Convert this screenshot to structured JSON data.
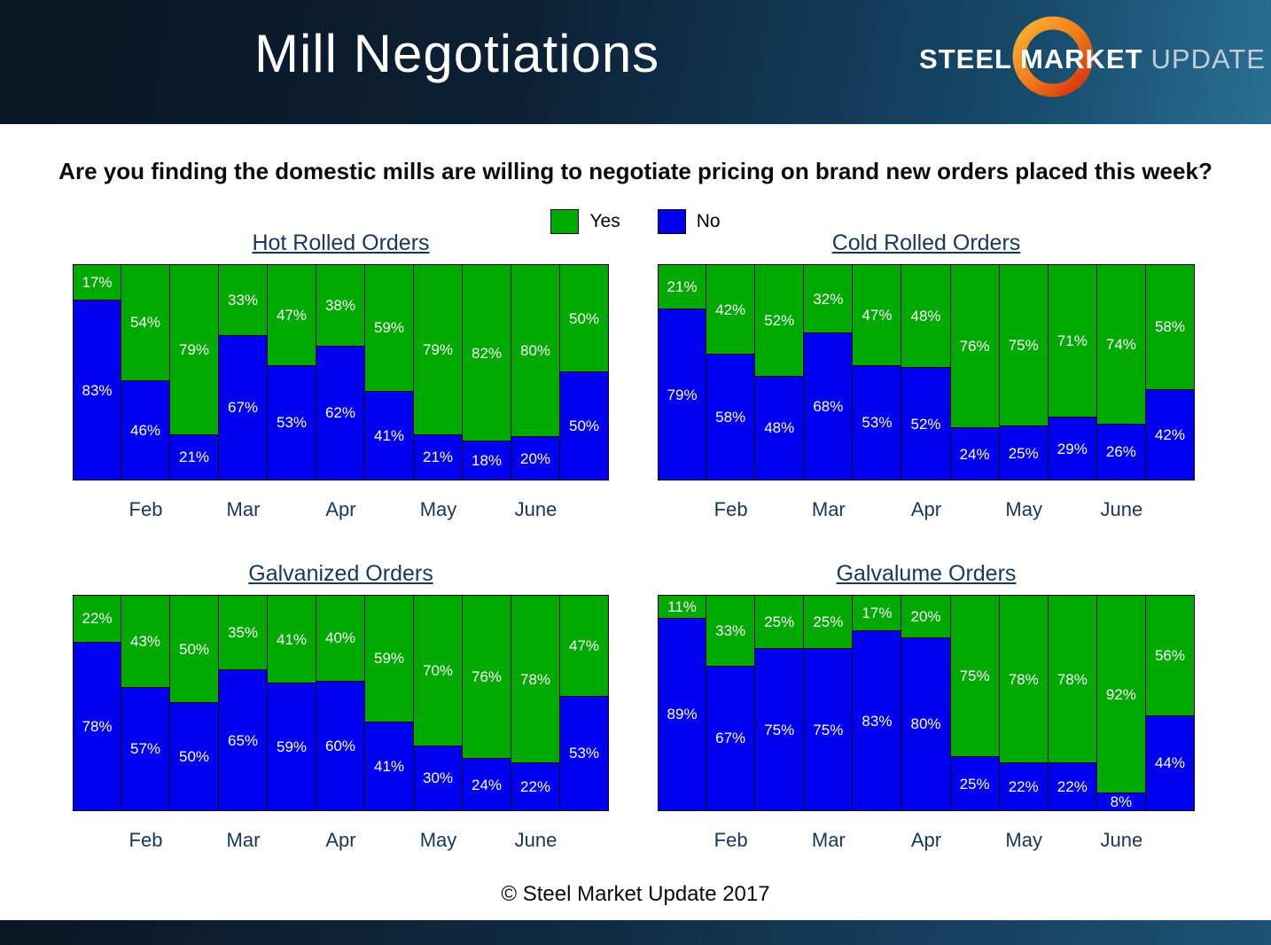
{
  "header": {
    "title": "Mill Negotiations",
    "logo": {
      "steel": "STEEL",
      "market": "MARKET",
      "update": "UPDATE"
    }
  },
  "question": "Are you finding the domestic mills are willing to negotiate pricing on brand new orders placed this week?",
  "legend": {
    "yes_label": "Yes",
    "no_label": "No",
    "yes_color": "#00AA00",
    "no_color": "#0000F0"
  },
  "footer": "© Steel Market Update 2017",
  "chart_data": [
    {
      "type": "bar",
      "stacked": true,
      "title": "Hot Rolled Orders",
      "unit": "%",
      "ylim": [
        0,
        100
      ],
      "legend_position": "top",
      "categories": [
        "Feb",
        "Mar",
        "Apr",
        "May",
        "June"
      ],
      "series": [
        {
          "name": "Yes",
          "color": "#00AA00",
          "values": [
            17,
            54,
            79,
            33,
            47,
            38,
            59,
            79,
            82,
            80,
            50
          ]
        },
        {
          "name": "No",
          "color": "#0000F0",
          "values": [
            83,
            46,
            21,
            67,
            53,
            62,
            41,
            21,
            18,
            20,
            50
          ]
        }
      ]
    },
    {
      "type": "bar",
      "stacked": true,
      "title": "Cold Rolled Orders",
      "unit": "%",
      "ylim": [
        0,
        100
      ],
      "legend_position": "top",
      "categories": [
        "Feb",
        "Mar",
        "Apr",
        "May",
        "June"
      ],
      "series": [
        {
          "name": "Yes",
          "color": "#00AA00",
          "values": [
            21,
            42,
            52,
            32,
            47,
            48,
            76,
            75,
            71,
            74,
            58
          ]
        },
        {
          "name": "No",
          "color": "#0000F0",
          "values": [
            79,
            58,
            48,
            68,
            53,
            52,
            24,
            25,
            29,
            26,
            42
          ]
        }
      ]
    },
    {
      "type": "bar",
      "stacked": true,
      "title": "Galvanized Orders",
      "unit": "%",
      "ylim": [
        0,
        100
      ],
      "legend_position": "top",
      "categories": [
        "Feb",
        "Mar",
        "Apr",
        "May",
        "June"
      ],
      "series": [
        {
          "name": "Yes",
          "color": "#00AA00",
          "values": [
            22,
            43,
            50,
            35,
            41,
            40,
            59,
            70,
            76,
            78,
            47
          ]
        },
        {
          "name": "No",
          "color": "#0000F0",
          "values": [
            78,
            57,
            50,
            65,
            59,
            60,
            41,
            30,
            24,
            22,
            53
          ]
        }
      ]
    },
    {
      "type": "bar",
      "stacked": true,
      "title": "Galvalume Orders",
      "unit": "%",
      "ylim": [
        0,
        100
      ],
      "legend_position": "top",
      "categories": [
        "Feb",
        "Mar",
        "Apr",
        "May",
        "June"
      ],
      "series": [
        {
          "name": "Yes",
          "color": "#00AA00",
          "values": [
            11,
            33,
            25,
            25,
            17,
            20,
            75,
            78,
            78,
            92,
            56
          ]
        },
        {
          "name": "No",
          "color": "#0000F0",
          "values": [
            89,
            67,
            75,
            75,
            83,
            80,
            25,
            22,
            22,
            8,
            44
          ]
        }
      ]
    }
  ]
}
